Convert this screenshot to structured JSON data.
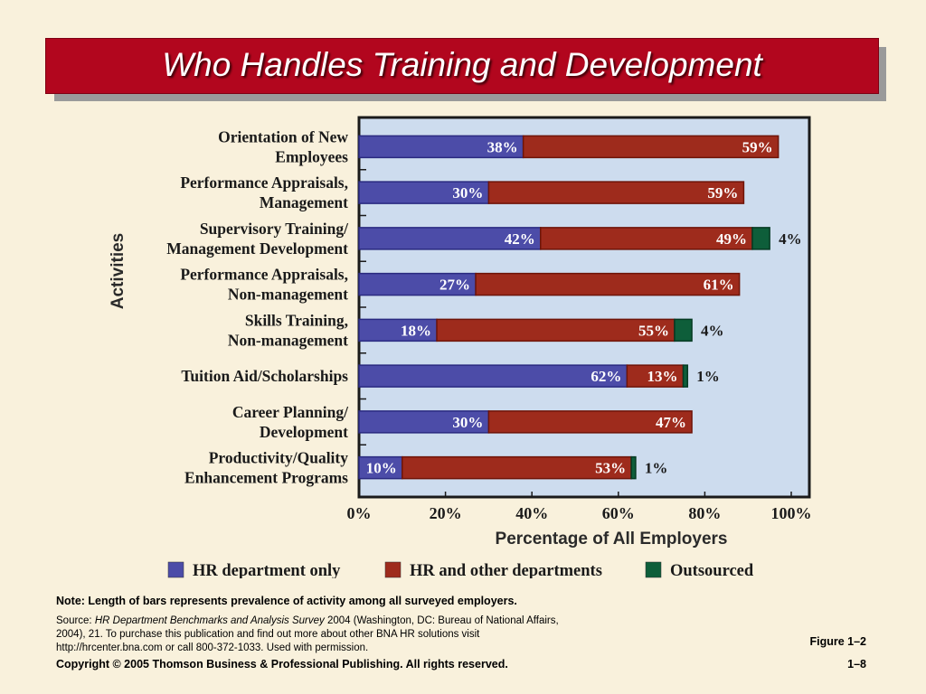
{
  "title": "Who Handles Training and Development",
  "chart_data": {
    "type": "bar",
    "orientation": "horizontal",
    "stacked": true,
    "categories": [
      [
        "Orientation of New",
        "Employees"
      ],
      [
        "Performance Appraisals,",
        "Management"
      ],
      [
        "Supervisory Training/",
        "Management Development"
      ],
      [
        "Performance Appraisals,",
        "Non-management"
      ],
      [
        "Skills Training,",
        "Non-management"
      ],
      [
        "Tuition Aid/Scholarships"
      ],
      [
        "Career Planning/",
        "Development"
      ],
      [
        "Productivity/Quality",
        "Enhancement Programs"
      ]
    ],
    "series": [
      {
        "name": "HR department only",
        "color": "#4c4ca8",
        "values": [
          38,
          30,
          42,
          27,
          18,
          62,
          30,
          10
        ]
      },
      {
        "name": "HR and other departments",
        "color": "#9e2b1c",
        "values": [
          59,
          59,
          49,
          61,
          55,
          13,
          47,
          53
        ]
      },
      {
        "name": "Outsourced",
        "color": "#0e5e3a",
        "values": [
          0,
          0,
          4,
          0,
          4,
          1,
          0,
          1
        ]
      }
    ],
    "value_labels": [
      [
        "38%",
        "59%",
        ""
      ],
      [
        "30%",
        "59%",
        ""
      ],
      [
        "42%",
        "49%",
        "4%"
      ],
      [
        "27%",
        "61%",
        ""
      ],
      [
        "18%",
        "55%",
        "4%"
      ],
      [
        "62%",
        "13%",
        "1%"
      ],
      [
        "30%",
        "47%",
        ""
      ],
      [
        "10%",
        "53%",
        "1%"
      ]
    ],
    "xlabel": "Percentage of All Employers",
    "ylabel": "Activities",
    "xlim": [
      0,
      100
    ],
    "xticks": [
      "0%",
      "20%",
      "40%",
      "60%",
      "80%",
      "100%"
    ],
    "legend_position": "bottom",
    "plot_background": "#cddcee"
  },
  "note": "Note: Length of bars represents prevalence of activity among all surveyed employers.",
  "source": {
    "prefix": "Source: ",
    "title": "HR Department Benchmarks and Analysis Survey",
    "rest": " 2004 (Washington, DC: Bureau of National Affairs, 2004), 21. To purchase this publication and find out more about other BNA HR solutions visit http://hrcenter.bna.com or call 800-372-1033. Used with permission."
  },
  "figure_label": "Figure 1–2",
  "copyright": "Copyright © 2005 Thomson Business & Professional Publishing. All rights reserved.",
  "page_number": "1–8"
}
